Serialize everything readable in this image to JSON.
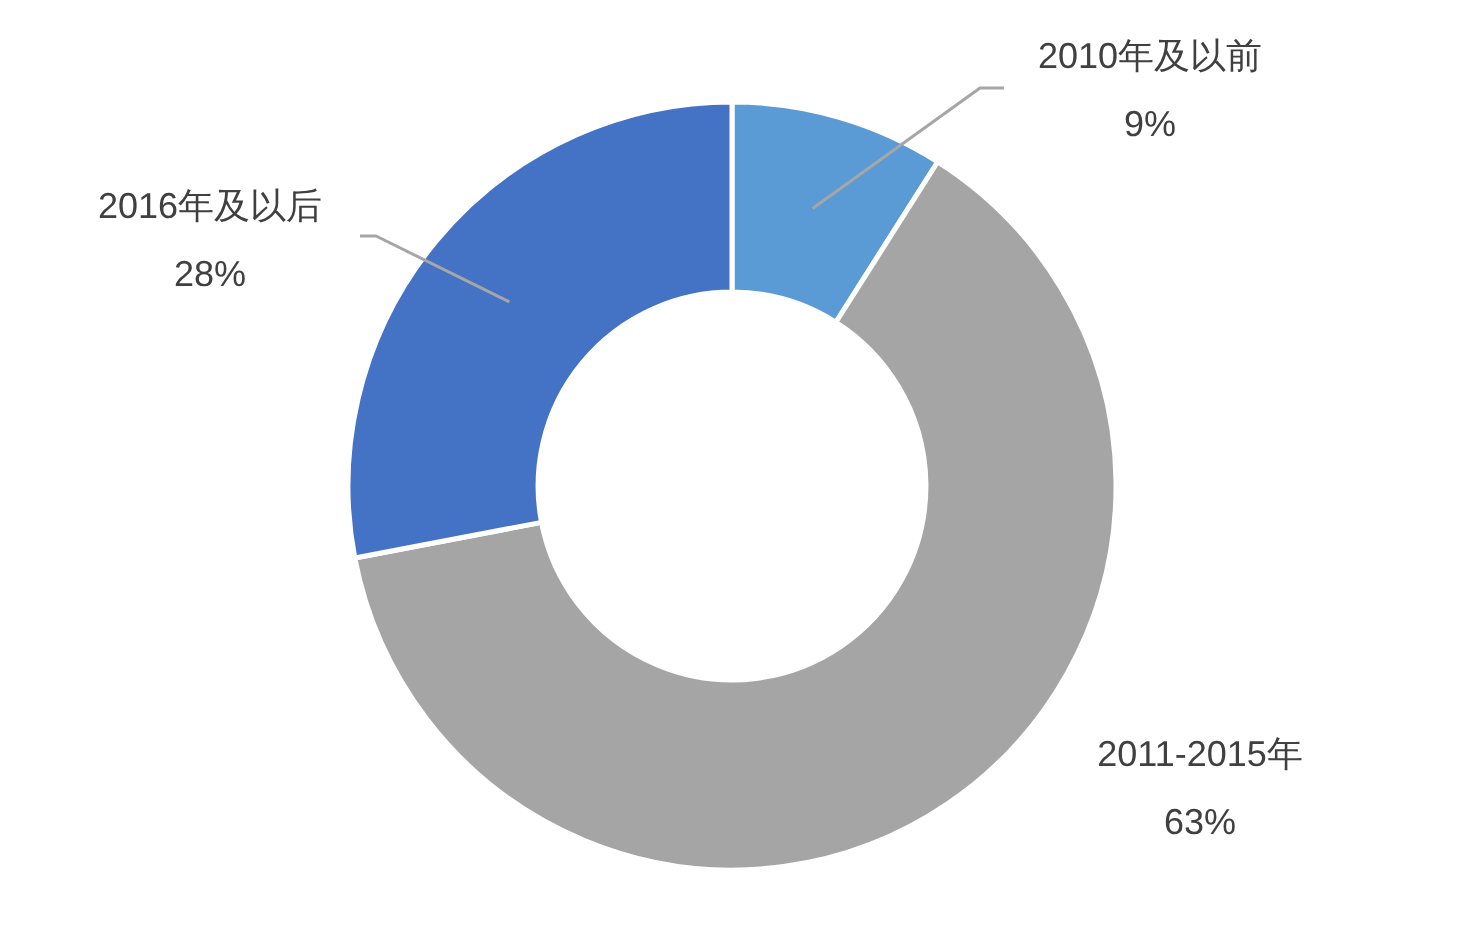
{
  "chart_data": {
    "type": "donut",
    "categories": [
      "2010年及以前",
      "2011-2015年",
      "2016年及以后"
    ],
    "values": [
      9,
      63,
      28
    ],
    "value_labels": [
      "9%",
      "63%",
      "28%"
    ],
    "colors": [
      "#5b9bd5",
      "#a5a5a5",
      "#4472c4"
    ],
    "legend": false
  }
}
